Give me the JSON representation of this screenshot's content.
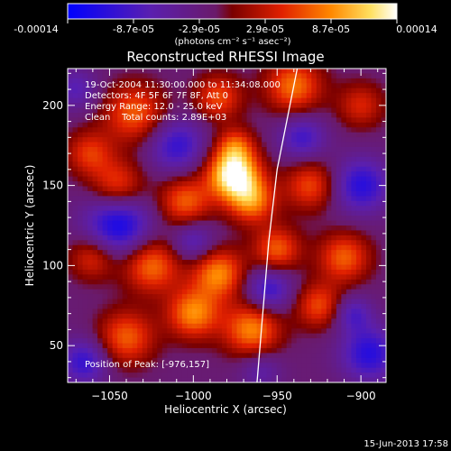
{
  "colorbar": {
    "ticks": [
      "-0.00014",
      "-8.7e-05",
      "-2.9e-05",
      "2.9e-05",
      "8.7e-05",
      "0.00014"
    ],
    "unit_label": "(photons cm⁻² s⁻¹ asec⁻²)"
  },
  "chart_data": {
    "type": "heatmap",
    "title": "Reconstructed RHESSI Image",
    "xlabel": "Heliocentric X (arcsec)",
    "ylabel": "Heliocentric Y (arcsec)",
    "xlim": [
      -1075,
      -885
    ],
    "ylim": [
      27,
      223
    ],
    "xticks": [
      -1050,
      -1000,
      -950,
      -900
    ],
    "yticks": [
      50,
      100,
      150,
      200
    ],
    "clim": [
      -0.00014,
      0.00014
    ],
    "info_lines": [
      "19-Oct-2004 11:30:00.000 to 11:34:08.000",
      "Detectors: 4F 5F 6F 7F 8F, Att 0",
      "Energy Range: 12.0 - 25.0 keV",
      "Clean    Total counts: 2.89E+03"
    ],
    "peak_label": "Position of Peak: [-976,157]",
    "peak": [
      -976,
      157
    ],
    "limb_line": [
      [
        -962,
        27
      ],
      [
        -955,
        115
      ],
      [
        -950,
        160
      ],
      [
        -938,
        223
      ]
    ]
  },
  "footer": {
    "date": "15-Jun-2013 17:58"
  }
}
